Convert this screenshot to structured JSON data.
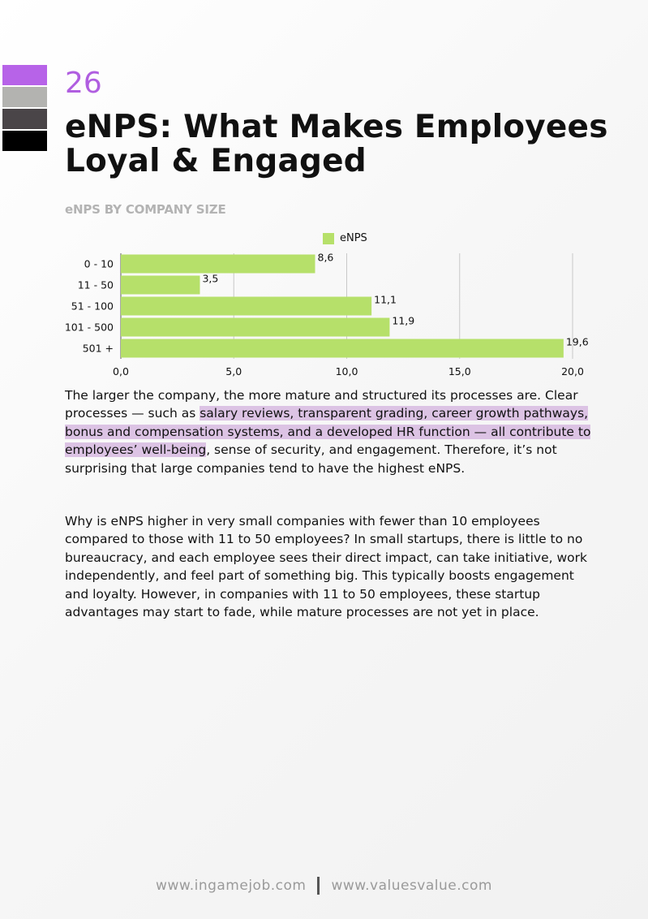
{
  "page": {
    "number": "26"
  },
  "title": "eNPS: What Makes Employees Loyal & Engaged",
  "swatches": [
    "#b763e8",
    "#b3b3b0",
    "#4a4548",
    "#000000"
  ],
  "chart_data": {
    "type": "bar",
    "orientation": "horizontal",
    "title": "eNPS BY COMPANY SIZE",
    "categories": [
      "0 - 10",
      "11 - 50",
      "51 - 100",
      "101 - 500",
      "501 +"
    ],
    "series": [
      {
        "name": "eNPS",
        "values": [
          8.6,
          3.5,
          11.1,
          11.9,
          19.6
        ],
        "color": "#b6e06a"
      }
    ],
    "value_labels": [
      "8,6",
      "3,5",
      "11,1",
      "11,9",
      "19,6"
    ],
    "xlim": [
      0,
      20
    ],
    "x_ticks": [
      0,
      5,
      10,
      15,
      20
    ],
    "x_tick_labels": [
      "0,0",
      "5,0",
      "10,0",
      "15,0",
      "20,0"
    ],
    "grid": true,
    "legend": "top-center"
  },
  "paragraph1": {
    "before": "The larger the company, the more mature and structured its processes are. Clear processes — such as ",
    "highlight": "salary reviews, transparent grading, career growth pathways, bonus and compensation systems, and a developed HR function — all contribute to employees’ well-being",
    "after": ", sense of security, and engagement. Therefore, it’s not surprising that large companies tend to have the highest eNPS."
  },
  "paragraph2": "Why is eNPS higher in very small companies with fewer than 10 employees compared to those with 11 to 50 employees? In small startups, there is little to no bureaucracy, and each employee sees their direct impact, can take initiative, work independently, and feel part of something big. This typically boosts engagement and loyalty. However, in companies with 11 to 50 employees, these startup advantages may start to fade, while mature processes are not yet in place.",
  "highlight_color": "#dcc3e4",
  "footer": {
    "site1": "www.ingamejob.com",
    "site2": "www.valuesvalue.com"
  }
}
